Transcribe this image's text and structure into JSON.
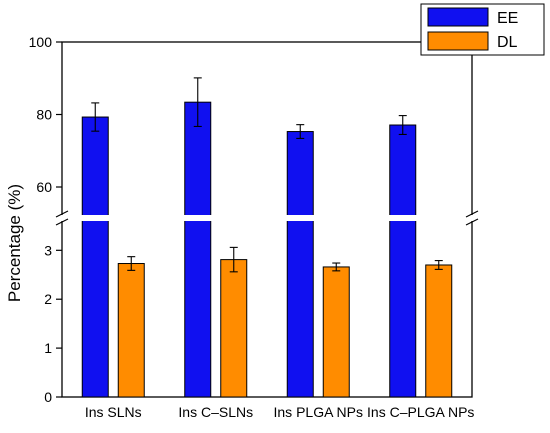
{
  "chart_data": {
    "type": "bar",
    "ylabel": "Percentage (%)",
    "axis_break": true,
    "categories": [
      "Ins SLNs",
      "Ins C–SLNs",
      "Ins PLGA NPs",
      "Ins C–PLGA NPs"
    ],
    "series": [
      {
        "name": "EE",
        "color": "#1010F0",
        "values": [
          79.3,
          83.4,
          75.3,
          77.1
        ],
        "errors": [
          3.9,
          6.7,
          1.9,
          2.6
        ]
      },
      {
        "name": "DL",
        "color": "#FF8C00",
        "values": [
          2.73,
          2.81,
          2.66,
          2.7
        ],
        "errors": [
          0.14,
          0.25,
          0.08,
          0.09
        ]
      }
    ],
    "upper_segment": {
      "ylim": [
        52,
        100
      ],
      "ticks": [
        "60",
        "80",
        "100"
      ]
    },
    "lower_segment": {
      "ylim": [
        0,
        3.62
      ],
      "ticks": [
        "0",
        "1",
        "2",
        "3"
      ]
    },
    "legend_position": "top-right"
  }
}
